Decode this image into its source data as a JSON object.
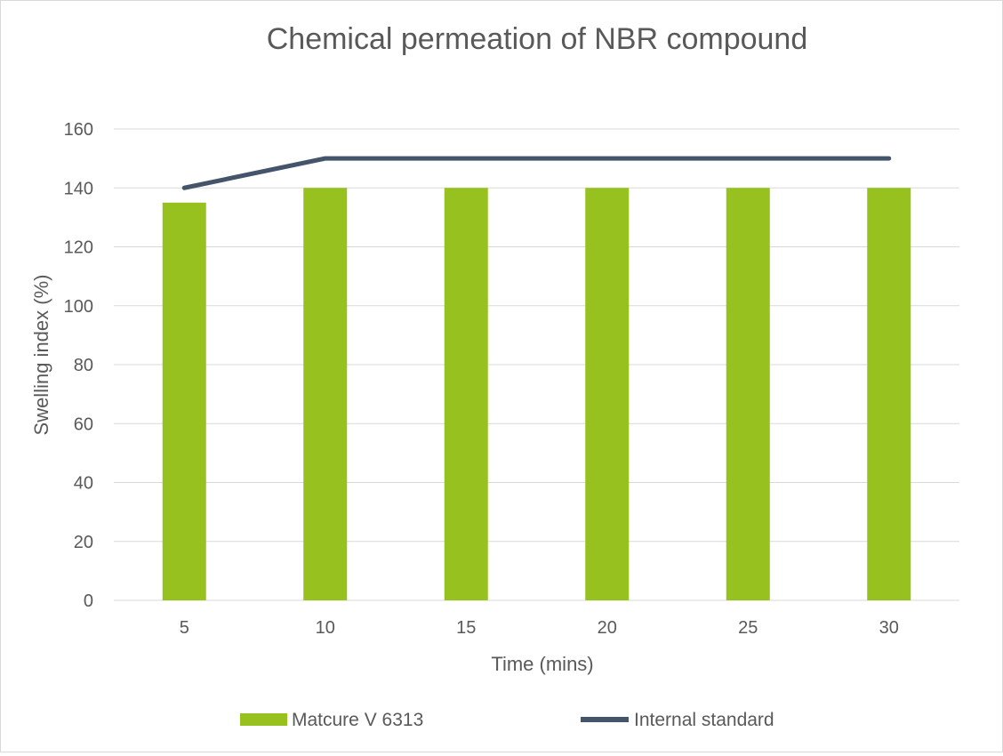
{
  "chart_data": {
    "type": "bar",
    "title": "Chemical permeation of NBR compound",
    "xlabel": "Time (mins)",
    "ylabel": "Swelling index (%)",
    "categories": [
      "5",
      "10",
      "15",
      "20",
      "25",
      "30"
    ],
    "ylim": [
      0,
      160
    ],
    "yticks": [
      0,
      20,
      40,
      60,
      80,
      100,
      120,
      140,
      160
    ],
    "grid": true,
    "legend_position": "bottom",
    "series": [
      {
        "name": "Matcure V 6313",
        "kind": "bar",
        "color": "#97c11f",
        "values": [
          135,
          140,
          140,
          140,
          140,
          140
        ]
      },
      {
        "name": "Internal standard",
        "kind": "line",
        "color": "#44546a",
        "values": [
          140,
          150,
          150,
          150,
          150,
          150
        ]
      }
    ]
  }
}
